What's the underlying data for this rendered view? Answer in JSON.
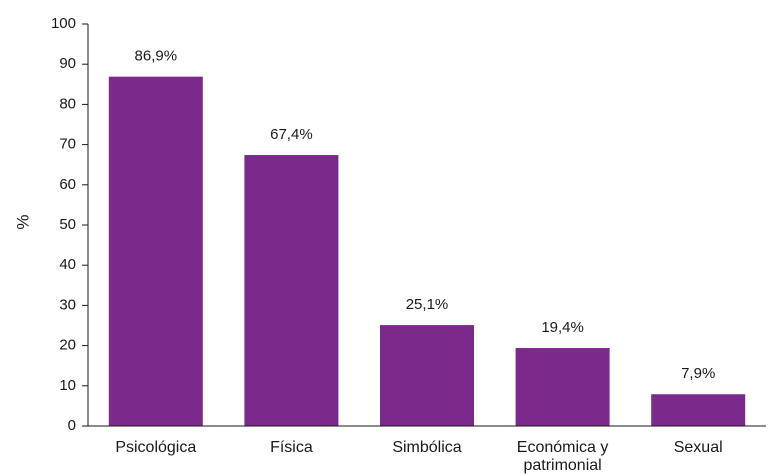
{
  "chart_data": {
    "type": "bar",
    "categories": [
      "Psicológica",
      "Física",
      "Simbólica",
      "Económica y\npatrimonial",
      "Sexual"
    ],
    "values": [
      86.9,
      67.4,
      25.1,
      19.4,
      7.9
    ],
    "data_labels": [
      "86,9%",
      "67,4%",
      "25,1%",
      "19,4%",
      "7,9%"
    ],
    "ylabel": "%",
    "xlabel": "",
    "ylim": [
      0,
      100
    ],
    "yticks": [
      0,
      10,
      20,
      30,
      40,
      50,
      60,
      70,
      80,
      90,
      100
    ],
    "grid": false,
    "colors": {
      "bar": "#7b2a8b"
    }
  }
}
